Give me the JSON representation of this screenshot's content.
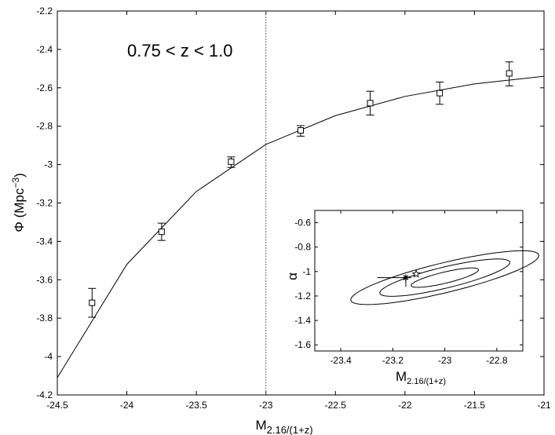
{
  "chart_data": [
    {
      "type": "line",
      "annotation": "0.75 < z < 1.0",
      "xlabel": {
        "main": "M",
        "sub": "2.16/(1+z)"
      },
      "ylabel": {
        "main": "Φ (Mpc",
        "sup": "−3",
        "close": ")"
      },
      "xlim": [
        -24.5,
        -21
      ],
      "ylim": [
        -4.2,
        -2.2
      ],
      "x_ticks": [
        -24.5,
        -24,
        -23.5,
        -23,
        -22.5,
        -22,
        -21.5,
        -21
      ],
      "x_tick_labels": [
        "-24.5",
        "-24",
        "-23.5",
        "-23",
        "-22.5",
        "-22",
        "-21.5",
        "-21"
      ],
      "y_ticks": [
        -2.2,
        -2.4,
        -2.6,
        -2.8,
        -3,
        -3.2,
        -3.4,
        -3.6,
        -3.8,
        -4,
        -4.2
      ],
      "y_tick_labels": [
        "-2.2",
        "-2.4",
        "-2.6",
        "-2.8",
        "-3",
        "-3.2",
        "-3.4",
        "-3.6",
        "-3.8",
        "-4",
        "-4.2"
      ],
      "vertical_line_x": -23,
      "series": [
        {
          "kind": "model_curve",
          "x": [
            -24.5,
            -24.0,
            -23.5,
            -23.0,
            -22.5,
            -22.0,
            -21.5,
            -21.0
          ],
          "y": [
            -4.11,
            -3.52,
            -3.14,
            -2.895,
            -2.745,
            -2.645,
            -2.58,
            -2.54
          ]
        },
        {
          "kind": "data_points",
          "marker": "square",
          "x": [
            -24.25,
            -23.75,
            -23.25,
            -22.75,
            -22.25,
            -21.75,
            -21.25
          ],
          "y": [
            -3.72,
            -3.35,
            -2.985,
            -2.822,
            -2.68,
            -2.628,
            -2.525
          ],
          "yerr_low": [
            0.075,
            0.045,
            0.03,
            0.03,
            0.062,
            0.058,
            0.065
          ],
          "yerr_high": [
            0.075,
            0.045,
            0.025,
            0.025,
            0.062,
            0.058,
            0.06
          ]
        }
      ]
    },
    {
      "type": "contour",
      "xlabel": {
        "main": "M",
        "sub": "2.16/(1+z)"
      },
      "ylabel": "α",
      "xlim": [
        -23.5,
        -22.7
      ],
      "ylim": [
        -1.65,
        -0.5
      ],
      "x_ticks": [
        -23.4,
        -23.2,
        -23,
        -22.8
      ],
      "x_tick_labels": [
        "-23.4",
        "-23.2",
        "-23",
        "-22.8"
      ],
      "y_ticks": [
        -0.6,
        -0.8,
        -1,
        -1.2,
        -1.4,
        -1.6
      ],
      "y_tick_labels": [
        "-0.6",
        "-0.8",
        "-1",
        "-1.2",
        "-1.4",
        "-1.6"
      ],
      "contours": [
        {
          "center": [
            -23.0,
            -1.05
          ],
          "a": 0.15,
          "b": 0.045,
          "angle": 32
        },
        {
          "center": [
            -23.0,
            -1.05
          ],
          "a": 0.29,
          "b": 0.085,
          "angle": 32
        },
        {
          "center": [
            -23.0,
            -1.05
          ],
          "a": 0.42,
          "b": 0.12,
          "angle": 32
        }
      ],
      "best_fit": {
        "x": -23.15,
        "y": -1.05,
        "marker": "asterisk",
        "xerr": 0.11,
        "yerr": 0.075
      },
      "reference": {
        "x": -23.11,
        "y": -1.02,
        "marker": "star"
      }
    }
  ]
}
